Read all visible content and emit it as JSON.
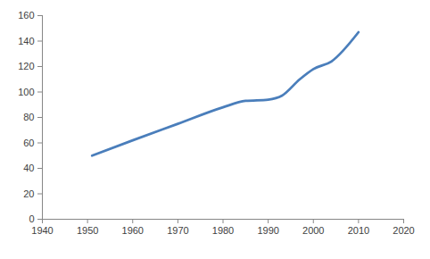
{
  "chart_data": {
    "type": "line",
    "x": [
      1951,
      1960,
      1970,
      1980,
      1985,
      1990,
      1993,
      1997,
      2000,
      2004,
      2010
    ],
    "series": [
      {
        "color": "#4a7ebb",
        "values": [
          50,
          62,
          75,
          88,
          93,
          94,
          97,
          110,
          118,
          124,
          147
        ]
      }
    ],
    "xlim": [
      1940,
      2020
    ],
    "xticks": [
      1940,
      1950,
      1960,
      1970,
      1980,
      1990,
      2000,
      2010,
      2020
    ],
    "ylim": [
      0,
      160
    ],
    "yticks": [
      0,
      20,
      40,
      60,
      80,
      100,
      120,
      140,
      160
    ],
    "grid": false
  }
}
